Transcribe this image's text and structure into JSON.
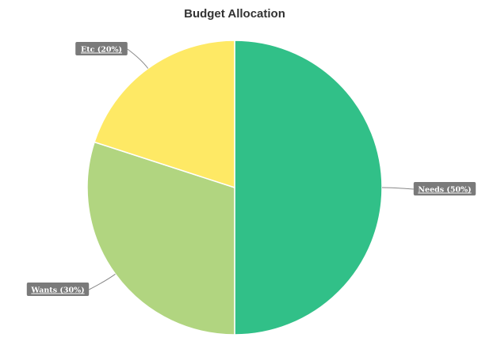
{
  "chart_data": {
    "type": "pie",
    "title": "Budget Allocation",
    "slices": [
      {
        "label": "Needs (50%)",
        "name": "Needs",
        "value": 50,
        "color": "#31c088"
      },
      {
        "label": "Wants (30%)",
        "name": "Wants",
        "value": 30,
        "color": "#b1d580"
      },
      {
        "label": "Etc (20%)",
        "name": "Etc",
        "value": 20,
        "color": "#fee965"
      }
    ],
    "start_angle_deg": 0,
    "direction": "clockwise",
    "label_box_color": "#7a7a7a",
    "leader_color": "#888888"
  }
}
